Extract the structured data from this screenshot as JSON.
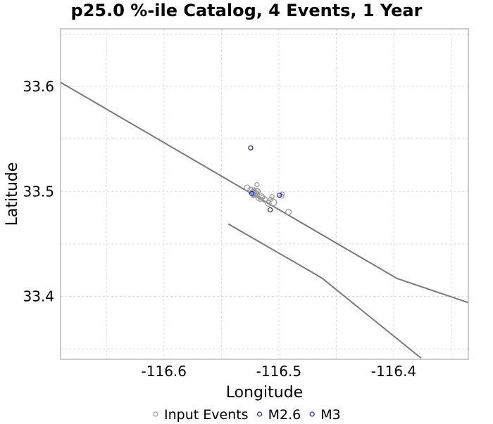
{
  "chart_data": {
    "type": "scatter",
    "title": "p25.0 %-ile Catalog, 4 Events, 1 Year",
    "xlabel": "Longitude",
    "ylabel": "Latitude",
    "xlim": [
      -116.69,
      -116.335
    ],
    "ylim": [
      33.34,
      33.655
    ],
    "xticks": [
      -116.6,
      -116.5,
      -116.4
    ],
    "yticks": [
      33.4,
      33.5,
      33.6
    ],
    "xtick_labels": [
      "-116.6",
      "-116.5",
      "-116.4"
    ],
    "ytick_labels": [
      "33.4",
      "33.5",
      "33.6"
    ],
    "grid": true,
    "legend_position": "bottom-center",
    "fault_lines": [
      [
        [
          -116.69,
          33.604
        ],
        [
          -116.397,
          33.417
        ],
        [
          -116.335,
          33.394
        ]
      ],
      [
        [
          -116.544,
          33.469
        ],
        [
          -116.468,
          33.421
        ],
        [
          -116.462,
          33.417
        ],
        [
          -116.376,
          33.341
        ]
      ]
    ],
    "series": [
      {
        "name": "Input Events",
        "color": "#999999",
        "x": [
          -116.5275,
          -116.5245,
          -116.522,
          -116.5215,
          -116.5205,
          -116.5195,
          -116.519,
          -116.5185,
          -116.52,
          -116.522,
          -116.518,
          -116.516,
          -116.515,
          -116.514,
          -116.5125,
          -116.509,
          -116.507,
          -116.506,
          -116.505,
          -116.497,
          -116.4975,
          -116.4915,
          -116.5185,
          -116.5235,
          -116.5215
        ],
        "y": [
          33.5035,
          33.5015,
          33.4995,
          33.4975,
          33.4985,
          33.5005,
          33.5065,
          33.5,
          33.4965,
          33.496,
          33.4935,
          33.4925,
          33.495,
          33.4945,
          33.4925,
          33.4885,
          33.4925,
          33.495,
          33.4895,
          33.4975,
          33.4955,
          33.4805,
          33.4975,
          33.4995,
          33.5015
        ],
        "sizes": [
          4,
          4,
          4,
          4,
          4,
          4,
          3,
          4,
          3,
          3,
          3,
          3,
          4,
          3,
          4,
          4,
          3,
          3,
          5,
          3,
          3,
          4,
          3,
          3,
          3
        ]
      },
      {
        "name": "M2.6",
        "color": "#1a2a6c",
        "x": [
          -116.5245,
          -116.5075
        ],
        "y": [
          33.5415,
          33.4825
        ],
        "sizes": [
          3,
          3
        ]
      },
      {
        "name": "M3",
        "color": "#1a1ae6",
        "x": [
          -116.5235,
          -116.4995
        ],
        "y": [
          33.498,
          33.4965
        ],
        "sizes": [
          3,
          3
        ]
      }
    ]
  }
}
